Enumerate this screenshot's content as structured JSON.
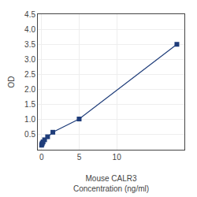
{
  "chart_data": {
    "type": "line",
    "x": [
      0,
      0.05,
      0.1,
      0.2,
      0.4,
      0.8,
      1.5,
      5,
      18
    ],
    "values": [
      0.15,
      0.19,
      0.22,
      0.26,
      0.33,
      0.43,
      0.58,
      1.02,
      3.5
    ],
    "xlabel": [
      "Mouse CALR3",
      "Concentration (ng/ml)"
    ],
    "ylabel": "OD",
    "xlim": [
      -0.5,
      19
    ],
    "ylim": [
      0,
      4.5
    ],
    "xticks": [
      0,
      5,
      10
    ],
    "yticks": [
      0.5,
      {
        "value": 1,
        "label": "1.0"
      },
      1.5,
      {
        "value": 2,
        "label": "2.0"
      },
      2.5,
      {
        "value": 3,
        "label": "3.0"
      },
      3.5,
      {
        "value": 4,
        "label": "4.0"
      },
      4.5
    ],
    "color": "#1f3d7a",
    "marker": "square",
    "line_style": "solid",
    "grid": true
  }
}
